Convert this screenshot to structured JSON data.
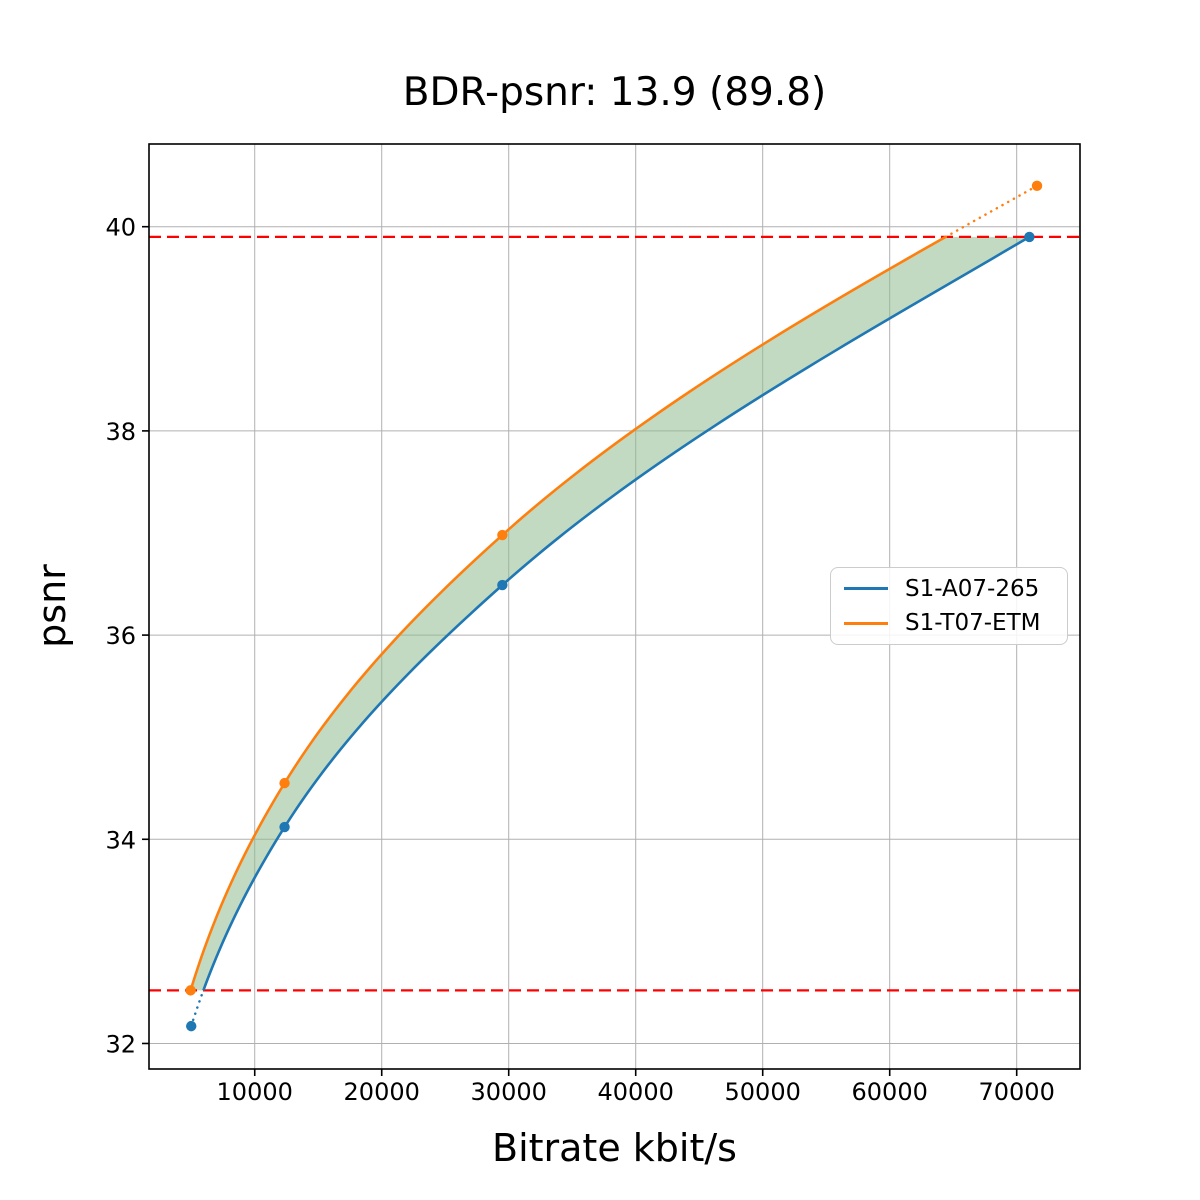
{
  "chart_data": {
    "type": "line",
    "title": "BDR-psnr: 13.9 (89.8)",
    "xlabel": "Bitrate kbit/s",
    "ylabel": "psnr",
    "xlim": [
      1675,
      74985
    ],
    "ylim": [
      31.75,
      40.81
    ],
    "x_ticks": [
      10000,
      20000,
      30000,
      40000,
      50000,
      60000,
      70000
    ],
    "x_tick_labels": [
      "10000",
      "20000",
      "30000",
      "40000",
      "50000",
      "60000",
      "70000"
    ],
    "y_ticks": [
      32,
      34,
      36,
      38,
      40
    ],
    "y_tick_labels": [
      "32",
      "34",
      "36",
      "38",
      "40"
    ],
    "grid": true,
    "grid_color": "#b0b0b0",
    "interpolation": "pchip-log-rate",
    "series": [
      {
        "name": "S1-A07-265",
        "color": "#1f77b4",
        "marker": "circle",
        "bitrate": [
          5000,
          12350,
          29500,
          71000
        ],
        "psnr": [
          32.17,
          34.12,
          36.49,
          39.9
        ]
      },
      {
        "name": "S1-T07-ETM",
        "color": "#ff7f0e",
        "marker": "circle",
        "bitrate": [
          4950,
          12350,
          29500,
          71600
        ],
        "psnr": [
          32.52,
          34.55,
          36.98,
          40.4
        ]
      }
    ],
    "overlap_band": {
      "psnr_low": 32.52,
      "psnr_high": 39.9,
      "line_color": "#ff0000",
      "line_style": "dashed",
      "fill_color": "#8fbc8f",
      "fill_opacity": 0.55
    },
    "legend": {
      "items": [
        "S1-A07-265",
        "S1-T07-ETM"
      ],
      "position": "center right"
    }
  }
}
